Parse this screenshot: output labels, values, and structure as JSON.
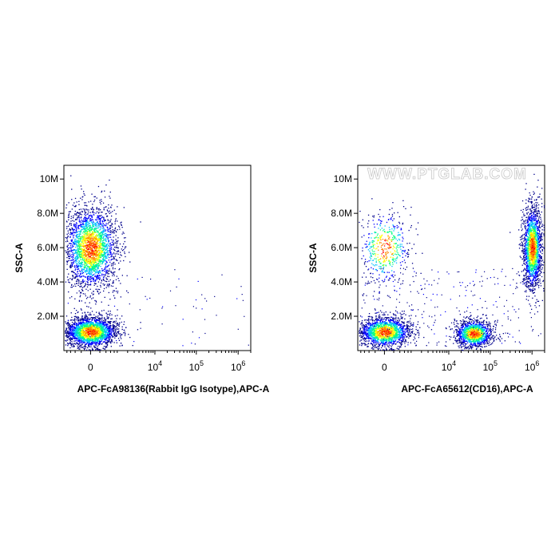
{
  "chart_data": [
    {
      "type": "scatter",
      "title": "",
      "xlabel": "APC-FcA98136(Rabbit IgG Isotype),APC-A",
      "ylabel": "SSC-A",
      "xscale": "biexponential",
      "xlim": [
        -1000,
        2000000
      ],
      "ylim": [
        0,
        10800000
      ],
      "x_ticks": [
        {
          "value": 0,
          "base": "0",
          "exp": ""
        },
        {
          "value": 10000,
          "base": "10",
          "exp": "4"
        },
        {
          "value": 100000,
          "base": "10",
          "exp": "5"
        },
        {
          "value": 1000000,
          "base": "10",
          "exp": "6"
        }
      ],
      "y_ticks": [
        {
          "value": 2000000,
          "label": "2.0M"
        },
        {
          "value": 4000000,
          "label": "4.0M"
        },
        {
          "value": 6000000,
          "label": "6.0M"
        },
        {
          "value": 8000000,
          "label": "8.0M"
        },
        {
          "value": 10000000,
          "label": "10M"
        }
      ],
      "colormap": [
        "#00008b",
        "#0000ff",
        "#00bfff",
        "#00ff80",
        "#ffff00",
        "#ff8000",
        "#ff0000"
      ],
      "populations": [
        {
          "x_center": 0,
          "y_center": 6000000,
          "x_spread": "narrow",
          "y_spread": 1200000,
          "events": 2600
        },
        {
          "x_center": 0,
          "y_center": 1100000,
          "x_spread": "narrow",
          "y_spread": 450000,
          "events": 2600
        }
      ],
      "grid": false
    },
    {
      "type": "scatter",
      "title": "",
      "xlabel": "APC-FcA65612(CD16),APC-A",
      "ylabel": "SSC-A",
      "xscale": "biexponential",
      "xlim": [
        -1000,
        2000000
      ],
      "ylim": [
        0,
        10800000
      ],
      "x_ticks": [
        {
          "value": 0,
          "base": "0",
          "exp": ""
        },
        {
          "value": 10000,
          "base": "10",
          "exp": "4"
        },
        {
          "value": 100000,
          "base": "10",
          "exp": "5"
        },
        {
          "value": 1000000,
          "base": "10",
          "exp": "6"
        }
      ],
      "y_ticks": [
        {
          "value": 2000000,
          "label": "2.0M"
        },
        {
          "value": 4000000,
          "label": "4.0M"
        },
        {
          "value": 6000000,
          "label": "6.0M"
        },
        {
          "value": 8000000,
          "label": "8.0M"
        },
        {
          "value": 10000000,
          "label": "10M"
        }
      ],
      "colormap": [
        "#00008b",
        "#0000ff",
        "#00bfff",
        "#00ff80",
        "#ffff00",
        "#ff8000",
        "#ff0000"
      ],
      "populations": [
        {
          "x_center": 0,
          "y_center": 6000000,
          "x_spread": "narrow",
          "y_spread": 1100000,
          "events": 500
        },
        {
          "x_center": 0,
          "y_center": 1100000,
          "x_spread": "narrow",
          "y_spread": 450000,
          "events": 1700
        },
        {
          "x_center": 40000,
          "y_center": 1000000,
          "x_spread": "medium",
          "y_spread": 400000,
          "events": 1300
        },
        {
          "x_center": 1000000,
          "y_center": 6000000,
          "x_spread": "tight",
          "y_spread": 1200000,
          "events": 1800
        }
      ],
      "grid": false
    }
  ],
  "watermark": "WWW.PTGLAB.COM"
}
